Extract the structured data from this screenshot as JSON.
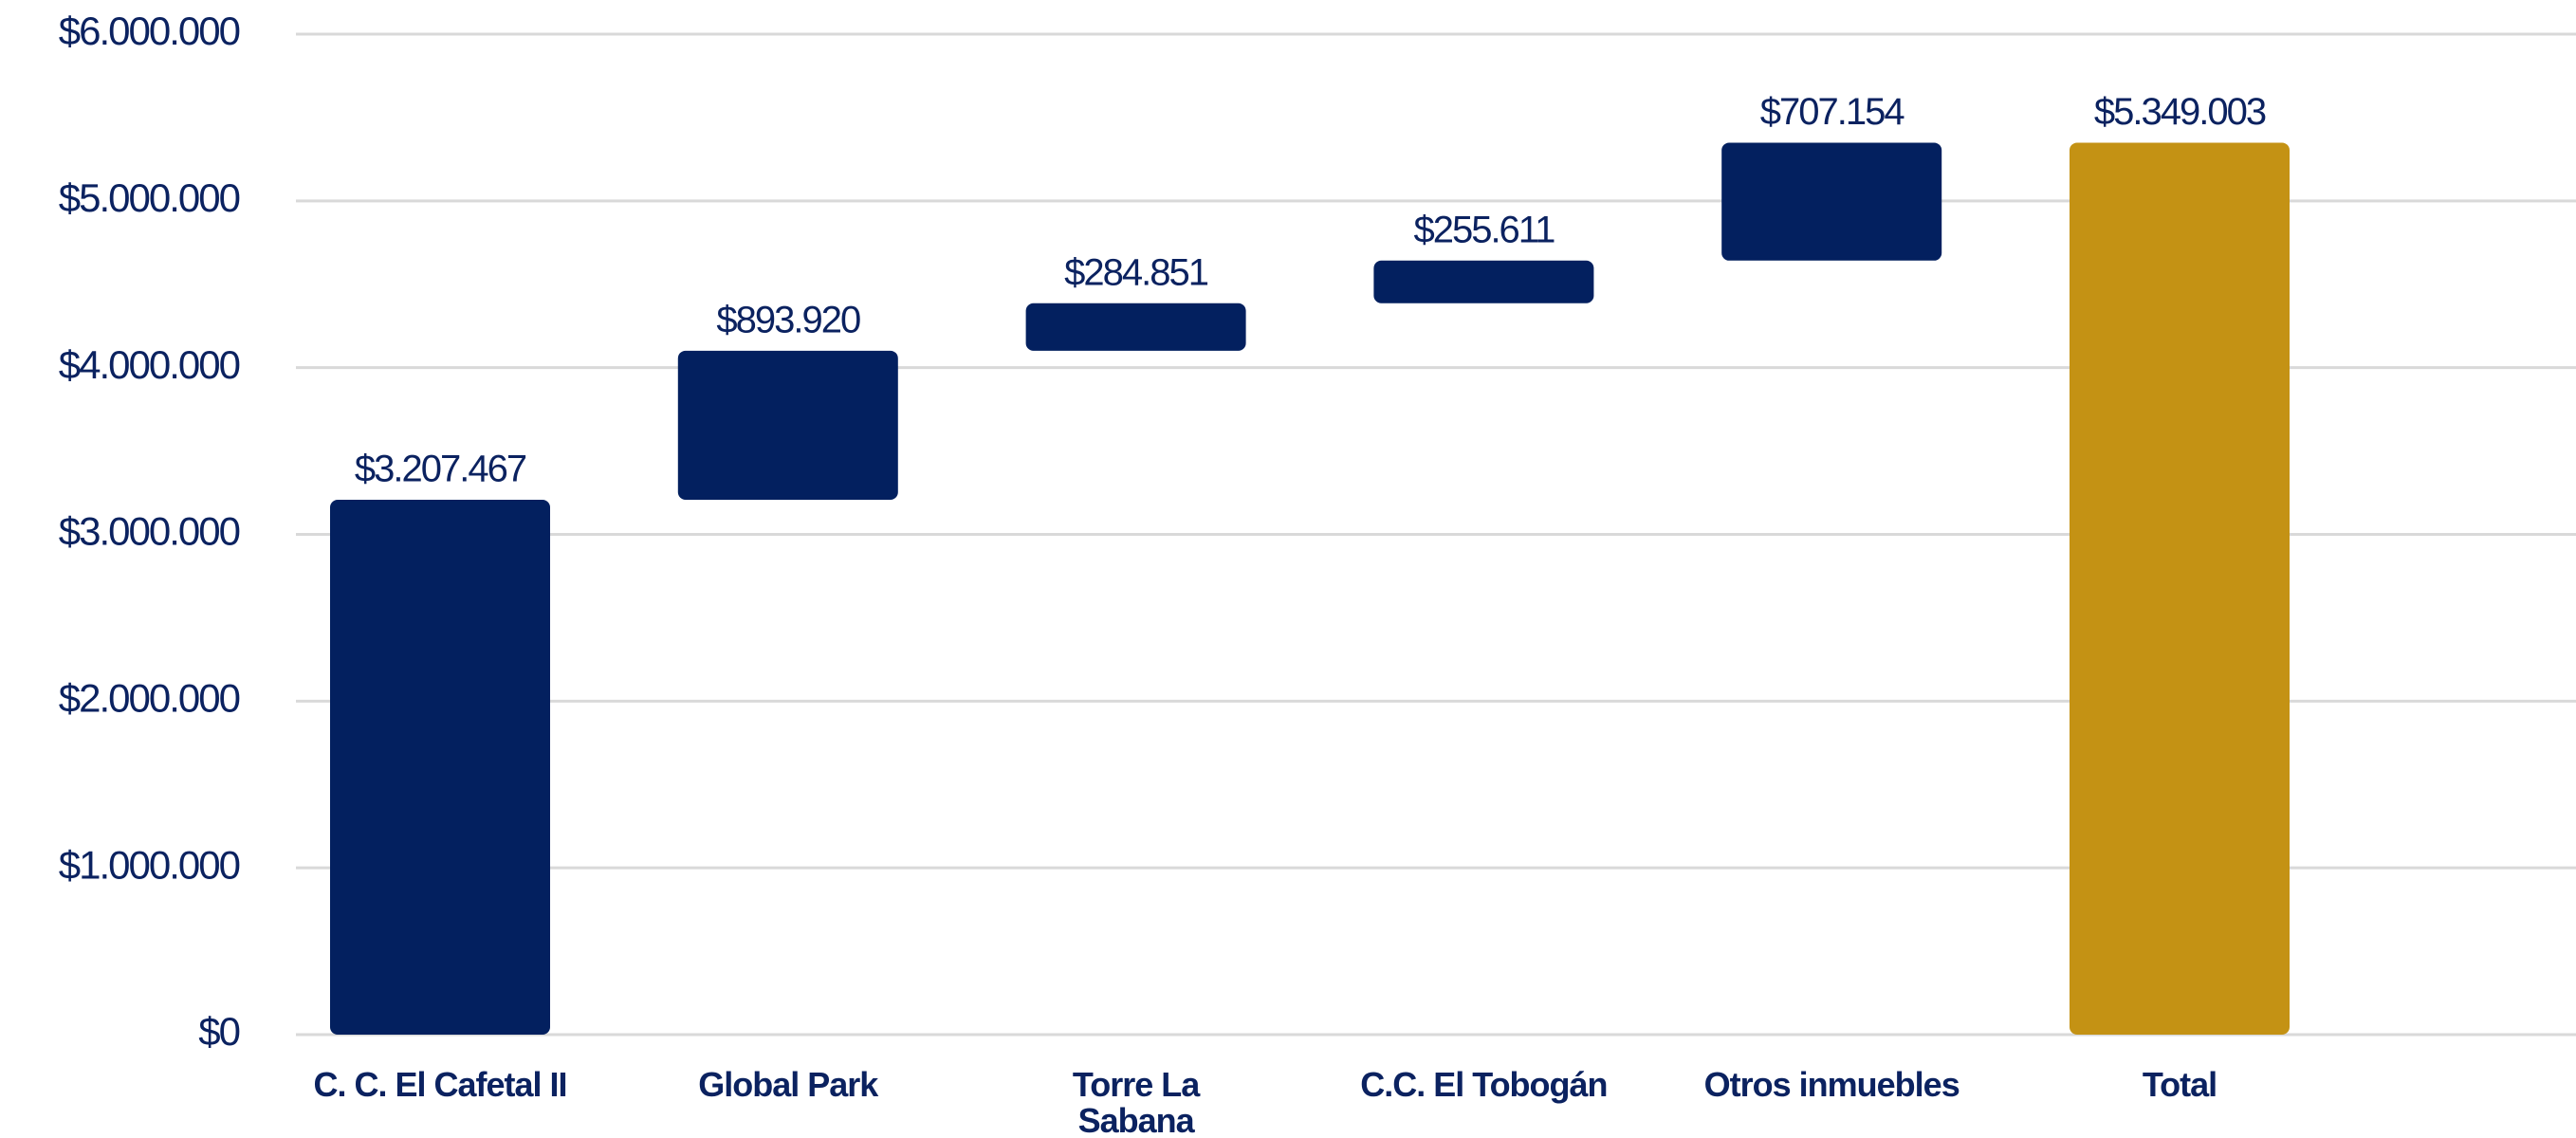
{
  "chart_data": {
    "type": "waterfall",
    "categories": [
      "C. C. El Cafetal II",
      "Global Park",
      "Torre La Sabana",
      "C.C. El Tobogán",
      "Otros inmuebles",
      "Total"
    ],
    "values": [
      3207467,
      893920,
      284851,
      255611,
      707154,
      5349003
    ],
    "value_labels": [
      "$3.207.467",
      "$893.920",
      "$284.851",
      "$255.611",
      "$707.154",
      "$5.349.003"
    ],
    "measure": [
      "relative",
      "relative",
      "relative",
      "relative",
      "relative",
      "total"
    ],
    "colors": [
      "#03205f",
      "#03205f",
      "#03205f",
      "#03205f",
      "#03205f",
      "#c49214"
    ],
    "ylim": [
      0,
      6000000
    ],
    "yticks": [
      {
        "value": 0,
        "label": "$0"
      },
      {
        "value": 1000000,
        "label": "$1.000.000"
      },
      {
        "value": 2000000,
        "label": "$2.000.000"
      },
      {
        "value": 3000000,
        "label": "$3.000.000"
      },
      {
        "value": 4000000,
        "label": "$4.000.000"
      },
      {
        "value": 5000000,
        "label": "$5.000.000"
      },
      {
        "value": 6000000,
        "label": "$6.000.000"
      }
    ],
    "grid": true
  }
}
